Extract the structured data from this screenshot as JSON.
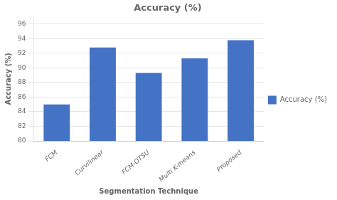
{
  "chart_data": {
    "type": "bar",
    "title": "Accuracy (%)",
    "xlabel": "Segmentation Technique",
    "ylabel": "Accuracy (%)",
    "categories": [
      "FCM",
      "Curvilinear",
      "FCM-OTSU",
      "Multi K-means",
      "Proposed"
    ],
    "series": [
      {
        "name": "Accuracy (%)",
        "color": "#4472C4",
        "values": [
          85.0,
          92.8,
          89.3,
          91.3,
          93.8
        ]
      }
    ],
    "ylim": [
      80,
      97
    ],
    "yticks": [
      80,
      82,
      84,
      86,
      88,
      90,
      92,
      94,
      96
    ],
    "grid": true,
    "legend": "right"
  }
}
